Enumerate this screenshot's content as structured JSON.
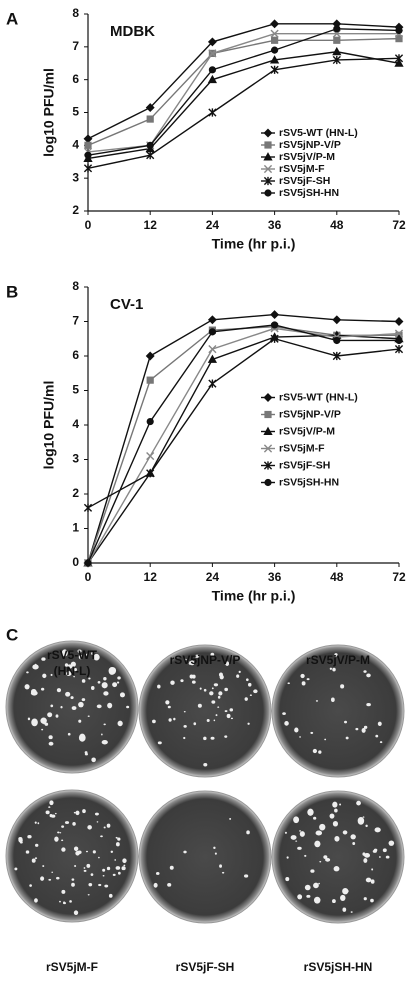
{
  "chart_data": [
    {
      "type": "line",
      "panel": "A",
      "title": "MDBK",
      "x_label": "Time (hr p.i.)",
      "y_label": "log10 PFU/ml",
      "categories": [
        "0",
        "12",
        "24",
        "36",
        "48",
        "72"
      ],
      "ylim": [
        2,
        8
      ],
      "yticks": [
        2,
        3,
        4,
        5,
        6,
        7,
        8
      ],
      "legend": "lower right",
      "series": [
        {
          "name": "rSV5-WT (HN-L)",
          "color": "#111111",
          "marker": "diamond",
          "values": [
            4.2,
            5.15,
            7.15,
            7.7,
            7.7,
            7.6
          ]
        },
        {
          "name": "rSV5jNP-V/P",
          "color": "#777777",
          "marker": "square",
          "values": [
            4.0,
            4.8,
            6.8,
            7.2,
            7.2,
            7.25
          ]
        },
        {
          "name": "rSV5jV/P-M",
          "color": "#111111",
          "marker": "triangle",
          "values": [
            3.6,
            3.9,
            6.0,
            6.6,
            6.85,
            6.5
          ]
        },
        {
          "name": "rSV5jM-F",
          "color": "#888888",
          "marker": "x",
          "values": [
            3.8,
            4.0,
            6.8,
            7.4,
            7.4,
            7.4
          ]
        },
        {
          "name": "rSV5jF-SH",
          "color": "#111111",
          "marker": "star",
          "values": [
            3.3,
            3.7,
            5.0,
            6.3,
            6.6,
            6.65
          ]
        },
        {
          "name": "rSV5jSH-HN",
          "color": "#111111",
          "marker": "circle",
          "values": [
            3.7,
            4.0,
            6.3,
            6.9,
            7.55,
            7.5
          ]
        }
      ]
    },
    {
      "type": "line",
      "panel": "B",
      "title": "CV-1",
      "x_label": "Time (hr p.i.)",
      "y_label": "log10 PFU/ml",
      "categories": [
        "0",
        "12",
        "24",
        "36",
        "48",
        "72"
      ],
      "ylim": [
        0,
        8
      ],
      "yticks": [
        0,
        1,
        2,
        3,
        4,
        5,
        6,
        7,
        8
      ],
      "legend": "center right",
      "series": [
        {
          "name": "rSV5-WT (HN-L)",
          "color": "#111111",
          "marker": "diamond",
          "values": [
            0,
            6.0,
            7.05,
            7.2,
            7.05,
            7.0
          ]
        },
        {
          "name": "rSV5jNP-V/P",
          "color": "#777777",
          "marker": "square",
          "values": [
            0,
            5.3,
            6.75,
            6.85,
            6.6,
            6.6
          ]
        },
        {
          "name": "rSV5jV/P-M",
          "color": "#111111",
          "marker": "triangle",
          "values": [
            0,
            2.6,
            5.9,
            6.55,
            6.6,
            6.5
          ]
        },
        {
          "name": "rSV5jM-F",
          "color": "#888888",
          "marker": "x",
          "values": [
            0,
            3.1,
            6.2,
            6.8,
            6.55,
            6.65
          ]
        },
        {
          "name": "rSV5jF-SH",
          "color": "#111111",
          "marker": "star",
          "values": [
            1.6,
            2.6,
            5.2,
            6.5,
            6.0,
            6.2
          ]
        },
        {
          "name": "rSV5jSH-HN",
          "color": "#111111",
          "marker": "circle",
          "values": [
            0,
            4.1,
            6.7,
            6.9,
            6.45,
            6.45
          ]
        }
      ]
    }
  ],
  "panel_c": {
    "panel": "C",
    "plates": [
      {
        "lines": [
          "rSV5-WT",
          "(HN-L)"
        ]
      },
      {
        "lines": [
          "rSV5jNP-V/P"
        ]
      },
      {
        "lines": [
          "rSV5jV/P-M"
        ]
      },
      {
        "lines": [
          "rSV5jM-F"
        ]
      },
      {
        "lines": [
          "rSV5jF-SH"
        ]
      },
      {
        "lines": [
          "rSV5jSH-HN"
        ]
      }
    ]
  }
}
